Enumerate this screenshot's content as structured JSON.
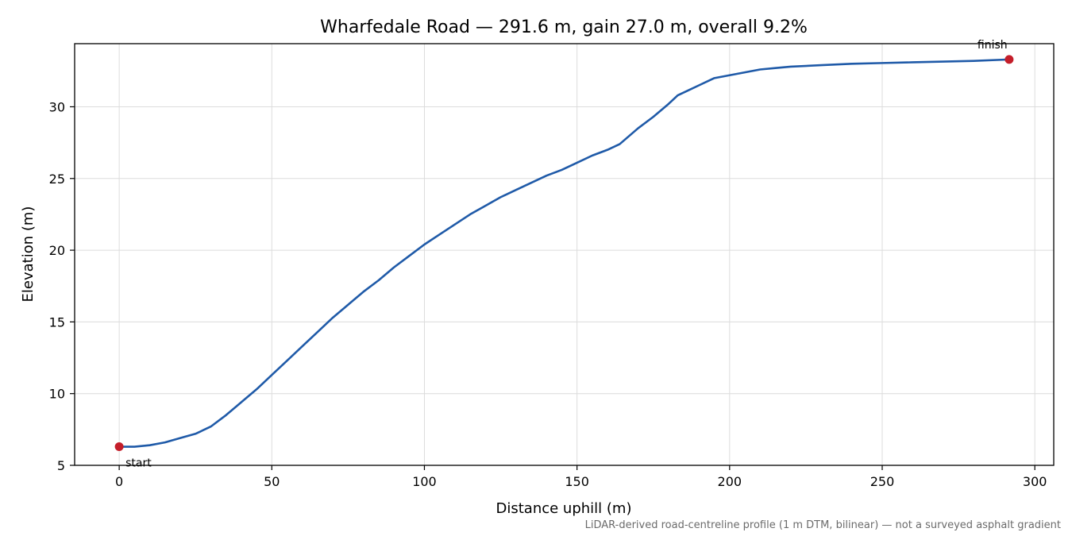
{
  "chart_data": {
    "type": "line",
    "title": "Wharfedale Road — 291.6 m, gain 27.0 m, overall 9.2%",
    "xlabel": "Distance uphill (m)",
    "ylabel": "Elevation (m)",
    "xlim": [
      -14.6,
      306.2
    ],
    "ylim": [
      5,
      34.4
    ],
    "xticks": [
      0,
      50,
      100,
      150,
      200,
      250,
      300
    ],
    "yticks": [
      5,
      10,
      15,
      20,
      25,
      30
    ],
    "grid": true,
    "series": [
      {
        "color": "#1f5aa8",
        "x": [
          0,
          5,
          10,
          15,
          20,
          25,
          30,
          35,
          40,
          45,
          50,
          55,
          60,
          65,
          70,
          75,
          80,
          85,
          90,
          95,
          100,
          105,
          110,
          115,
          120,
          125,
          130,
          135,
          140,
          145,
          150,
          155,
          160,
          164,
          170,
          175,
          180,
          183,
          187,
          190,
          195,
          200,
          205,
          210,
          215,
          220,
          230,
          240,
          250,
          260,
          270,
          280,
          291.6
        ],
        "y": [
          6.3,
          6.3,
          6.4,
          6.6,
          6.9,
          7.2,
          7.7,
          8.5,
          9.4,
          10.3,
          11.3,
          12.3,
          13.3,
          14.3,
          15.3,
          16.2,
          17.1,
          17.9,
          18.8,
          19.6,
          20.4,
          21.1,
          21.8,
          22.5,
          23.1,
          23.7,
          24.2,
          24.7,
          25.2,
          25.6,
          26.1,
          26.6,
          27.0,
          27.4,
          28.5,
          29.3,
          30.2,
          30.8,
          31.2,
          31.5,
          32.0,
          32.2,
          32.4,
          32.6,
          32.7,
          32.8,
          32.9,
          33.0,
          33.05,
          33.1,
          33.15,
          33.2,
          33.3
        ]
      }
    ],
    "markers": [
      {
        "x": 0,
        "y": 6.3,
        "label": "start",
        "color": "#c41e2a"
      },
      {
        "x": 291.6,
        "y": 33.3,
        "label": "finish",
        "color": "#c41e2a"
      }
    ],
    "footnote": "LiDAR-derived road-centreline profile (1 m DTM, bilinear) — not a surveyed asphalt gradient"
  }
}
